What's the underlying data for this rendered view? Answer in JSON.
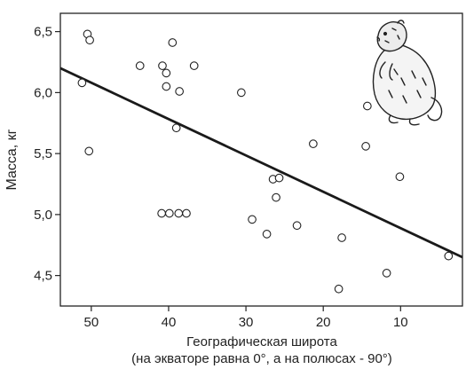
{
  "chart_data": {
    "type": "scatter",
    "xlabel": "Географическая широта",
    "xlabel_sub": "(на экваторе равна 0°, а на полюсах - 90°)",
    "ylabel": "Масса, кг",
    "x_reversed": true,
    "xlim": [
      54,
      2
    ],
    "ylim": [
      4.25,
      6.65
    ],
    "x_ticks": [
      50,
      40,
      30,
      20,
      10
    ],
    "x_tick_labels": [
      "50",
      "40",
      "30",
      "20",
      "10"
    ],
    "y_ticks": [
      4.5,
      5.0,
      5.5,
      6.0,
      6.5
    ],
    "y_tick_labels": [
      "4,5",
      "5,0",
      "5,5",
      "6,0",
      "6,5"
    ],
    "grid": false,
    "points": [
      {
        "x": 50.5,
        "y": 6.48
      },
      {
        "x": 50.2,
        "y": 6.43
      },
      {
        "x": 51.2,
        "y": 6.08
      },
      {
        "x": 50.3,
        "y": 5.52
      },
      {
        "x": 43.7,
        "y": 6.22
      },
      {
        "x": 40.8,
        "y": 6.22
      },
      {
        "x": 40.3,
        "y": 6.16
      },
      {
        "x": 40.3,
        "y": 6.05
      },
      {
        "x": 39.5,
        "y": 6.41
      },
      {
        "x": 38.6,
        "y": 6.01
      },
      {
        "x": 36.7,
        "y": 6.22
      },
      {
        "x": 39.0,
        "y": 5.71
      },
      {
        "x": 40.9,
        "y": 5.01
      },
      {
        "x": 39.9,
        "y": 5.01
      },
      {
        "x": 38.7,
        "y": 5.01
      },
      {
        "x": 37.7,
        "y": 5.01
      },
      {
        "x": 30.6,
        "y": 6.0
      },
      {
        "x": 29.2,
        "y": 4.96
      },
      {
        "x": 27.3,
        "y": 4.84
      },
      {
        "x": 26.5,
        "y": 5.29
      },
      {
        "x": 25.7,
        "y": 5.3
      },
      {
        "x": 26.1,
        "y": 5.14
      },
      {
        "x": 23.4,
        "y": 4.91
      },
      {
        "x": 21.3,
        "y": 5.58
      },
      {
        "x": 18.0,
        "y": 4.39
      },
      {
        "x": 17.6,
        "y": 4.81
      },
      {
        "x": 14.3,
        "y": 5.89
      },
      {
        "x": 14.5,
        "y": 5.56
      },
      {
        "x": 11.8,
        "y": 4.52
      },
      {
        "x": 10.1,
        "y": 5.31
      },
      {
        "x": 3.8,
        "y": 4.66
      }
    ],
    "trend_line": {
      "x": [
        54,
        2
      ],
      "y": [
        6.2,
        4.65
      ]
    },
    "colors": {
      "axis": "#222222",
      "marker_stroke": "#222222",
      "line": "#1a1a1a"
    },
    "decoration": "marmot-illustration"
  }
}
